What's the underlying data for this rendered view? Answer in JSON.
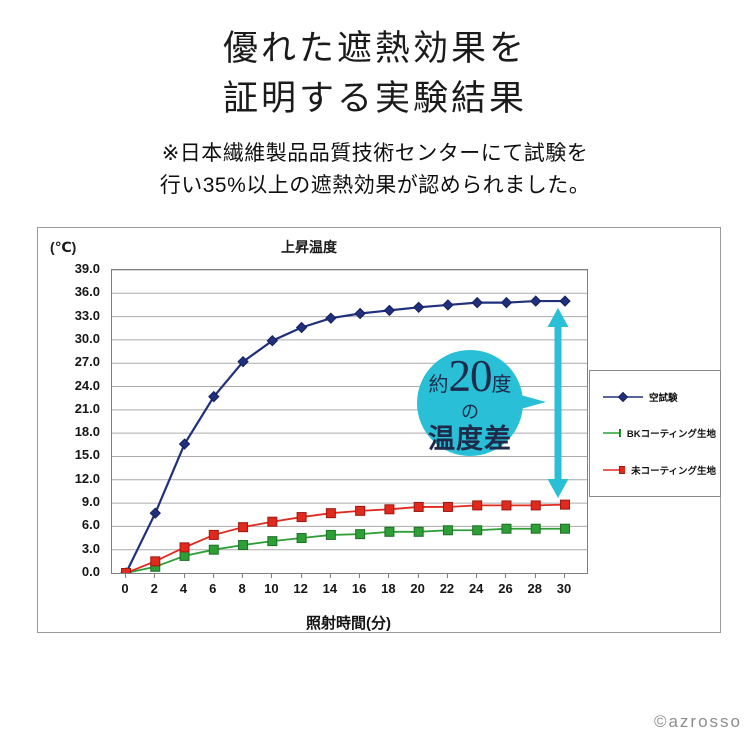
{
  "header": {
    "title_line1": "優れた遮熱効果を",
    "title_line2": "証明する実験結果",
    "note_line1": "※日本繊維製品品質技術センターにて試験を",
    "note_line2": "行い35%以上の遮熱効果が認められました。"
  },
  "chart": {
    "panel_title": "上昇温度",
    "y_unit": "(℃)",
    "x_axis_title": "照射時間(分)",
    "annotation": {
      "line1_prefix": "約",
      "line1_number": "20",
      "line1_suffix": "度",
      "line2": "の",
      "line3": "温度差",
      "bubble_color": "#29bfd6",
      "text_color": "#1d2a4a"
    },
    "colors": {
      "grid": "#ababab",
      "plot_border": "#7f7f7f",
      "panel_border": "#9b9b9b"
    }
  },
  "chart_data": {
    "type": "line",
    "title": "上昇温度",
    "xlabel": "照射時間(分)",
    "ylabel": "(℃)",
    "x": [
      0,
      2,
      4,
      6,
      8,
      10,
      12,
      14,
      16,
      18,
      20,
      22,
      24,
      26,
      28,
      30
    ],
    "ylim": [
      0,
      39
    ],
    "ytick_step": 3,
    "grid": "horizontal",
    "legend_position": "right",
    "series": [
      {
        "name": "空試験",
        "color": "#20307c",
        "marker": "diamond",
        "marker_border": "#141f5e",
        "values": [
          0.0,
          7.7,
          16.6,
          22.7,
          27.2,
          29.9,
          31.6,
          32.8,
          33.4,
          33.8,
          34.2,
          34.5,
          34.8,
          34.8,
          35.0,
          35.0
        ]
      },
      {
        "name": "BKコーティング生地",
        "color": "#2e9e37",
        "marker": "square",
        "marker_border": "#1e7024",
        "values": [
          0.0,
          0.8,
          2.2,
          3.0,
          3.6,
          4.1,
          4.5,
          4.9,
          5.0,
          5.3,
          5.3,
          5.5,
          5.5,
          5.7,
          5.7,
          5.7
        ]
      },
      {
        "name": "未コーティング生地",
        "color": "#e02a1e",
        "marker": "square",
        "marker_border": "#9e1710",
        "values": [
          0.0,
          1.5,
          3.3,
          4.9,
          5.9,
          6.6,
          7.2,
          7.7,
          8.0,
          8.2,
          8.5,
          8.5,
          8.7,
          8.7,
          8.7,
          8.8
        ]
      }
    ]
  },
  "footer": {
    "copyright": "©azrosso"
  }
}
